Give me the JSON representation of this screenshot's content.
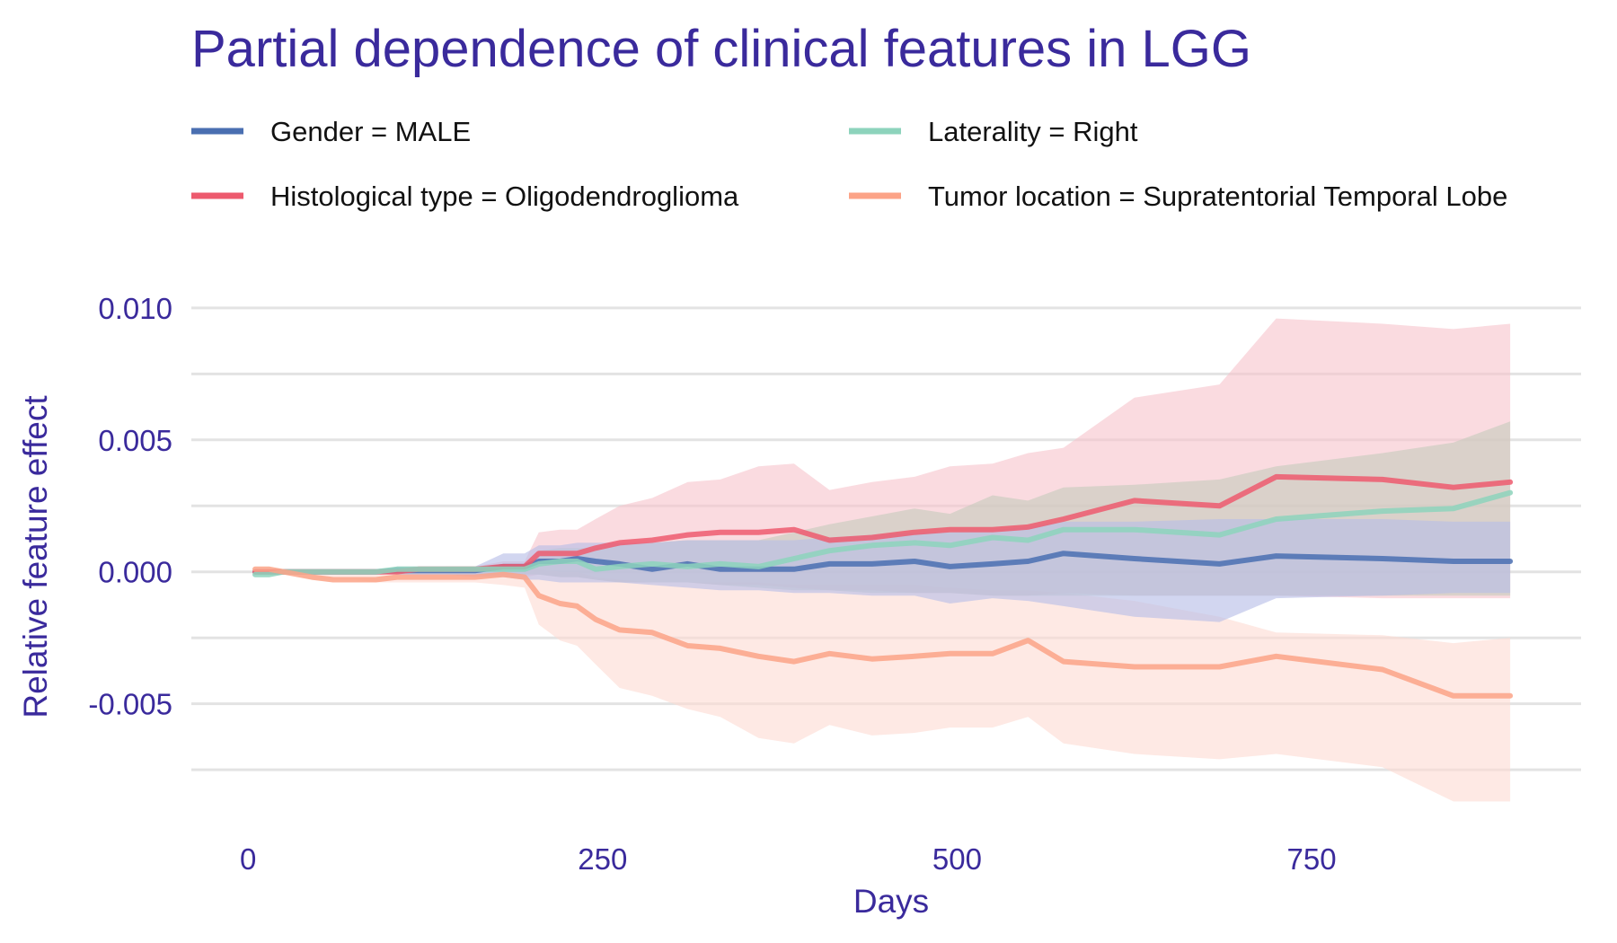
{
  "chart_data": {
    "type": "line",
    "title": "Partial dependence of clinical features in LGG",
    "xlabel": "Days",
    "ylabel": "Relative feature effect",
    "xlim": [
      -40,
      940
    ],
    "ylim": [
      -0.0093,
      0.0118
    ],
    "x_ticks": [
      0,
      250,
      500,
      750
    ],
    "x_tick_labels": [
      "0",
      "250",
      "500",
      "750"
    ],
    "y_ticks": [
      0.01,
      0.005,
      0.0,
      -0.005
    ],
    "y_tick_labels": [
      "0.010",
      "0.005",
      "0.000",
      "-0.005"
    ],
    "y_minor_gridlines": [
      0.0075,
      0.0025,
      -0.0025,
      -0.0075
    ],
    "grid": true,
    "legend_position": "top",
    "x": [
      5,
      15,
      25,
      45,
      60,
      75,
      90,
      105,
      120,
      140,
      160,
      180,
      195,
      205,
      220,
      232,
      245,
      262,
      285,
      310,
      333,
      360,
      385,
      410,
      440,
      470,
      495,
      525,
      550,
      575,
      625,
      685,
      725,
      800,
      850,
      890
    ],
    "series": [
      {
        "name": "Gender = MALE",
        "color": "#4a6fb1",
        "band_color": "#b7bde6",
        "values": [
          0,
          0,
          0,
          0,
          0,
          0,
          0,
          5e-05,
          5e-05,
          5e-05,
          5e-05,
          0.0002,
          0.0002,
          0.0004,
          0.0004,
          0.0005,
          0.0004,
          0.0003,
          0.0001,
          0.0003,
          0.0001,
          0.0001,
          0.0001,
          0.0003,
          0.0003,
          0.0004,
          0.0002,
          0.0003,
          0.0004,
          0.0007,
          0.0005,
          0.0003,
          0.0006,
          0.0005,
          0.0004,
          0.0004
        ],
        "lower": [
          0,
          0,
          0,
          0,
          0,
          0,
          0,
          -0.0001,
          -0.0001,
          -0.0001,
          -0.0002,
          -0.0002,
          -0.0003,
          -0.0003,
          -0.0004,
          -0.0004,
          -0.0004,
          -0.0004,
          -0.0005,
          -0.0006,
          -0.0007,
          -0.0007,
          -0.0008,
          -0.0008,
          -0.0009,
          -0.0009,
          -0.0012,
          -0.001,
          -0.0011,
          -0.0013,
          -0.0017,
          -0.0019,
          -0.001,
          -0.0009,
          -0.0008,
          -0.0008
        ],
        "upper": [
          0,
          0,
          0,
          0,
          0,
          0,
          0,
          0.0002,
          0.0002,
          0.0002,
          0.0002,
          0.0007,
          0.0007,
          0.001,
          0.001,
          0.0011,
          0.0011,
          0.0011,
          0.0011,
          0.0012,
          0.0012,
          0.0012,
          0.0012,
          0.0013,
          0.0014,
          0.0015,
          0.0015,
          0.0016,
          0.0017,
          0.0019,
          0.0019,
          0.002,
          0.002,
          0.002,
          0.0019,
          0.0019
        ]
      },
      {
        "name": "Laterality = Right",
        "color": "#8dd3bc",
        "band_color": "#c7ccbd",
        "values": [
          -0.0001,
          -0.0001,
          0,
          0,
          0,
          0,
          0,
          0.0001,
          0.0001,
          0.0001,
          0.0001,
          0.0001,
          0.0001,
          0.0003,
          0.0004,
          0.0004,
          0.0001,
          0.0002,
          0.0003,
          0.0002,
          0.0003,
          0.0002,
          0.0005,
          0.0008,
          0.001,
          0.0011,
          0.001,
          0.0013,
          0.0012,
          0.0016,
          0.0016,
          0.0014,
          0.002,
          0.0023,
          0.0024,
          0.003
        ],
        "lower": [
          -0.0001,
          -0.0001,
          0,
          0,
          0,
          0,
          0,
          -0.0001,
          -0.0001,
          -0.0001,
          -0.0001,
          -0.0001,
          -0.0001,
          -0.0001,
          -0.0002,
          -0.0002,
          -0.0003,
          -0.0004,
          -0.0004,
          -0.0004,
          -0.0005,
          -0.0006,
          -0.0007,
          -0.0007,
          -0.0008,
          -0.0008,
          -0.0008,
          -0.0009,
          -0.0009,
          -0.0009,
          -0.0009,
          -0.0009,
          -0.0009,
          -0.0009,
          -0.0009,
          -0.0009
        ],
        "upper": [
          0,
          0,
          0,
          0,
          0,
          0,
          0,
          0.0002,
          0.0002,
          0.0002,
          0.0002,
          0.0003,
          0.0003,
          0.0008,
          0.0009,
          0.0009,
          0.0009,
          0.001,
          0.0011,
          0.0012,
          0.0012,
          0.0012,
          0.0015,
          0.0018,
          0.0021,
          0.0024,
          0.0022,
          0.0029,
          0.0027,
          0.0032,
          0.0033,
          0.0035,
          0.004,
          0.0045,
          0.0049,
          0.0057
        ]
      },
      {
        "name": "Histological type = Oligodendroglioma",
        "color": "#ed5a6e",
        "band_color": "#f7c5cd",
        "values": [
          0,
          0,
          0,
          0,
          0,
          0,
          0,
          0,
          0.0001,
          0.0001,
          0.0001,
          0.0002,
          0.0002,
          0.0007,
          0.0007,
          0.0007,
          0.0009,
          0.0011,
          0.0012,
          0.0014,
          0.0015,
          0.0015,
          0.0016,
          0.0012,
          0.0013,
          0.0015,
          0.0016,
          0.0016,
          0.0017,
          0.002,
          0.0027,
          0.0025,
          0.0036,
          0.0035,
          0.0032,
          0.0034
        ],
        "lower": [
          0,
          0,
          0,
          0,
          0,
          0,
          0,
          -0.0001,
          -0.0001,
          -0.0001,
          -0.0001,
          -0.0002,
          -0.0002,
          -0.0001,
          -0.0002,
          -0.0002,
          -0.0003,
          -0.0004,
          -0.0004,
          -0.0004,
          -0.0005,
          -0.0005,
          -0.0006,
          -0.0007,
          -0.0007,
          -0.0008,
          -0.0008,
          -0.0009,
          -0.0009,
          -0.0008,
          -0.0009,
          -0.0009,
          -0.0009,
          -0.001,
          -0.001,
          -0.001
        ],
        "upper": [
          0,
          0,
          0,
          0,
          0,
          0,
          0,
          0.0001,
          0.0001,
          0.0002,
          0.0002,
          0.0004,
          0.0004,
          0.0015,
          0.0016,
          0.0016,
          0.002,
          0.0025,
          0.0028,
          0.0034,
          0.0035,
          0.004,
          0.0041,
          0.0031,
          0.0034,
          0.0036,
          0.004,
          0.0041,
          0.0045,
          0.0047,
          0.0066,
          0.0071,
          0.0096,
          0.0094,
          0.0092,
          0.0094
        ]
      },
      {
        "name": "Tumor location = Supratentorial  Temporal Lobe",
        "color": "#fca387",
        "band_color": "#fedcd4",
        "values": [
          0.0001,
          0.0001,
          0,
          -0.0002,
          -0.0003,
          -0.0003,
          -0.0003,
          -0.0002,
          -0.0002,
          -0.0002,
          -0.0002,
          -0.0001,
          -0.0002,
          -0.0009,
          -0.0012,
          -0.0013,
          -0.0018,
          -0.0022,
          -0.0023,
          -0.0028,
          -0.0029,
          -0.0032,
          -0.0034,
          -0.0031,
          -0.0033,
          -0.0032,
          -0.0031,
          -0.0031,
          -0.0026,
          -0.0034,
          -0.0036,
          -0.0036,
          -0.0032,
          -0.0037,
          -0.0047,
          -0.0047
        ],
        "lower": [
          0.0001,
          0.0001,
          0,
          -0.0003,
          -0.0003,
          -0.0003,
          -0.0004,
          -0.0004,
          -0.0004,
          -0.0004,
          -0.0004,
          -0.0005,
          -0.0006,
          -0.002,
          -0.0026,
          -0.0028,
          -0.0035,
          -0.0044,
          -0.0047,
          -0.0052,
          -0.0055,
          -0.0063,
          -0.0065,
          -0.0058,
          -0.0062,
          -0.0061,
          -0.0059,
          -0.0059,
          -0.0055,
          -0.0065,
          -0.0069,
          -0.0071,
          -0.0069,
          -0.0074,
          -0.0087,
          -0.0087
        ],
        "upper": [
          0.0001,
          0.0001,
          0,
          -0.0001,
          -0.0001,
          -0.0001,
          -0.0001,
          -0.0001,
          0,
          0,
          0,
          0.0001,
          0.0002,
          0.0001,
          0,
          0,
          -0.0002,
          -0.0003,
          -0.0004,
          -0.0004,
          -0.0004,
          -0.0004,
          -0.0005,
          -0.0005,
          -0.0005,
          -0.0005,
          -0.0006,
          -0.0007,
          -0.0007,
          -0.0008,
          -0.0011,
          -0.0017,
          -0.0023,
          -0.0024,
          -0.0027,
          -0.0025
        ]
      }
    ]
  }
}
